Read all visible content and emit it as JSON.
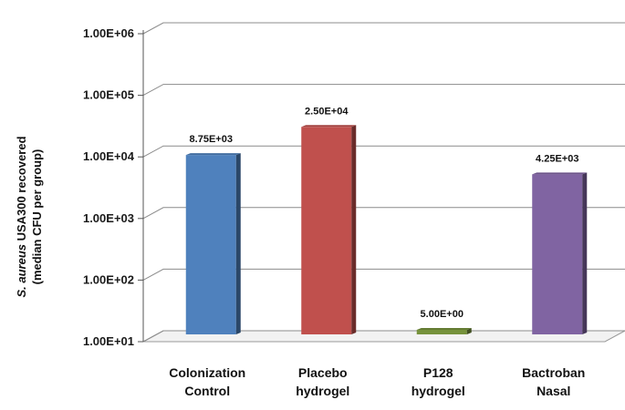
{
  "chart_data": {
    "type": "bar",
    "scale": "log",
    "categories": [
      [
        "Colonization",
        "Control"
      ],
      [
        "Placebo",
        "hydrogel"
      ],
      [
        "P128",
        "hydrogel"
      ],
      [
        "Bactroban",
        "Nasal"
      ]
    ],
    "values": [
      8750,
      25000,
      5,
      4250
    ],
    "data_labels": [
      "8.75E+03",
      "2.50E+04",
      "5.00E+00",
      "4.25E+03"
    ],
    "colors": [
      "#4f81bd",
      "#c0504d",
      "#76923c",
      "#8064a2"
    ],
    "yticks": [
      {
        "value": 10,
        "label": "1.00E+01"
      },
      {
        "value": 100,
        "label": "1.00E+02"
      },
      {
        "value": 1000,
        "label": "1.00E+03"
      },
      {
        "value": 10000,
        "label": "1.00E+04"
      },
      {
        "value": 100000,
        "label": "1.00E+05"
      },
      {
        "value": 1000000,
        "label": "1.00E+06"
      }
    ],
    "ylim": [
      10,
      1000000
    ],
    "ylabel_line1_italic": "S. aureus",
    "ylabel_line1_rest": " USA300  recovered",
    "ylabel_line2": "(median CFU per group)",
    "grid": true,
    "legend": "none"
  }
}
